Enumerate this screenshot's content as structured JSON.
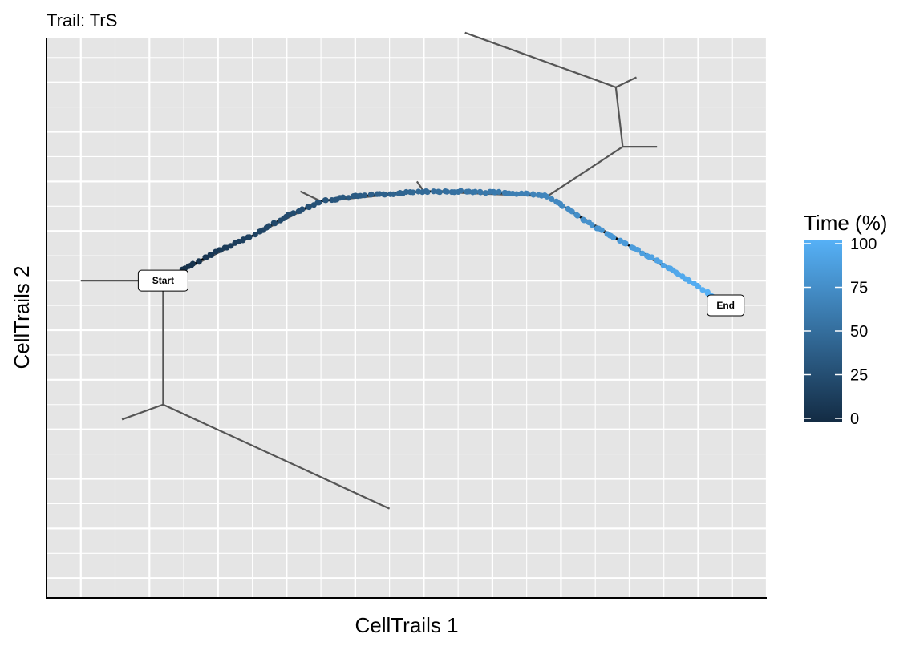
{
  "chart_data": {
    "type": "scatter",
    "title": "Trail: TrS",
    "xlabel": "CellTrails 1",
    "ylabel": "CellTrails 2",
    "xlim": [
      -0.5,
      10
    ],
    "ylim": [
      -1.4,
      9.9
    ],
    "grid": true,
    "legend": {
      "title": "Time (%)",
      "placement": "right",
      "ticks": [
        0,
        25,
        50,
        75,
        100
      ],
      "color_low": "#132b43",
      "color_high": "#56b1f7"
    },
    "trajectory_segments": [
      [
        [
          0,
          5.0
        ],
        [
          1.2,
          5.0
        ]
      ],
      [
        [
          1.2,
          5.0
        ],
        [
          1.2,
          2.5
        ]
      ],
      [
        [
          1.2,
          2.5
        ],
        [
          0.6,
          2.2
        ]
      ],
      [
        [
          1.2,
          2.5
        ],
        [
          4.5,
          0.4
        ]
      ],
      [
        [
          1.2,
          5.0
        ],
        [
          3.5,
          6.6
        ]
      ],
      [
        [
          3.5,
          6.6
        ],
        [
          3.2,
          6.8
        ]
      ],
      [
        [
          3.5,
          6.6
        ],
        [
          5.0,
          6.8
        ]
      ],
      [
        [
          5.0,
          6.8
        ],
        [
          4.9,
          7.0
        ]
      ],
      [
        [
          5.0,
          6.8
        ],
        [
          6.8,
          6.7
        ]
      ],
      [
        [
          6.8,
          6.7
        ],
        [
          7.9,
          7.7
        ]
      ],
      [
        [
          7.9,
          7.7
        ],
        [
          8.4,
          7.7
        ]
      ],
      [
        [
          7.9,
          7.7
        ],
        [
          7.8,
          8.9
        ]
      ],
      [
        [
          7.8,
          8.9
        ],
        [
          8.1,
          9.1
        ]
      ],
      [
        [
          7.8,
          8.9
        ],
        [
          5.6,
          10.0
        ]
      ],
      [
        [
          6.8,
          6.7
        ],
        [
          9.2,
          4.7
        ]
      ]
    ],
    "trail_path": [
      [
        1.2,
        5.0
      ],
      [
        1.6,
        5.3
      ],
      [
        2.0,
        5.6
      ],
      [
        2.5,
        5.9
      ],
      [
        3.0,
        6.3
      ],
      [
        3.5,
        6.6
      ],
      [
        4.0,
        6.7
      ],
      [
        4.5,
        6.75
      ],
      [
        5.0,
        6.8
      ],
      [
        5.5,
        6.8
      ],
      [
        6.0,
        6.78
      ],
      [
        6.5,
        6.75
      ],
      [
        6.8,
        6.7
      ],
      [
        7.2,
        6.35
      ],
      [
        7.6,
        6.0
      ],
      [
        8.0,
        5.7
      ],
      [
        8.4,
        5.4
      ],
      [
        8.8,
        5.05
      ],
      [
        9.2,
        4.7
      ]
    ],
    "nodes": [
      {
        "label": "Start",
        "x": 1.2,
        "y": 5.0
      },
      {
        "label": "End",
        "x": 9.4,
        "y": 4.5
      }
    ]
  }
}
